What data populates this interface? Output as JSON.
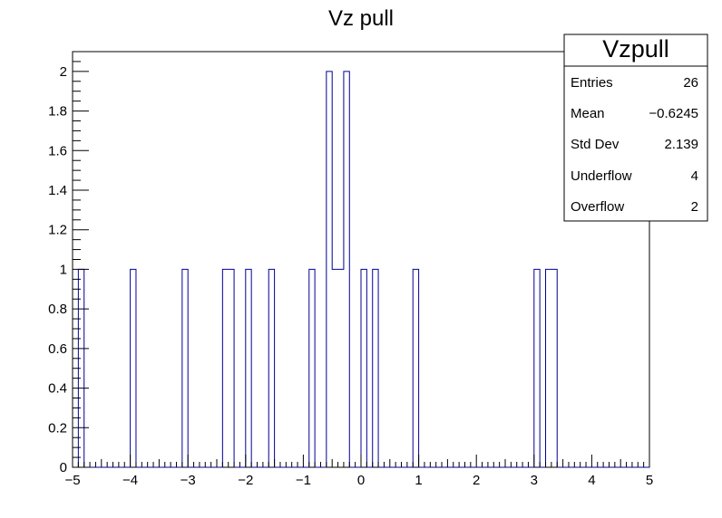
{
  "chart_data": {
    "type": "bar",
    "title": "Vz pull",
    "xlabel": "",
    "ylabel": "",
    "xlim": [
      -5,
      5
    ],
    "ylim": [
      0,
      2.1
    ],
    "bin_width": 0.1,
    "x_ticks": [
      "−5",
      "−4",
      "−3",
      "−2",
      "−1",
      "0",
      "1",
      "2",
      "3",
      "4",
      "5"
    ],
    "y_ticks": [
      "0",
      "0.2",
      "0.4",
      "0.6",
      "0.8",
      "1",
      "1.2",
      "1.4",
      "1.6",
      "1.8",
      "2"
    ],
    "bins": [
      {
        "x_low": -4.9,
        "count": 1
      },
      {
        "x_low": -4.0,
        "count": 1
      },
      {
        "x_low": -3.1,
        "count": 1
      },
      {
        "x_low": -2.4,
        "count": 1
      },
      {
        "x_low": -2.3,
        "count": 1
      },
      {
        "x_low": -2.0,
        "count": 1
      },
      {
        "x_low": -1.6,
        "count": 1
      },
      {
        "x_low": -0.9,
        "count": 1
      },
      {
        "x_low": -0.6,
        "count": 2
      },
      {
        "x_low": -0.5,
        "count": 1
      },
      {
        "x_low": -0.4,
        "count": 1
      },
      {
        "x_low": -0.3,
        "count": 2
      },
      {
        "x_low": 0.0,
        "count": 1
      },
      {
        "x_low": 0.2,
        "count": 1
      },
      {
        "x_low": 0.9,
        "count": 1
      },
      {
        "x_low": 3.0,
        "count": 1
      },
      {
        "x_low": 3.2,
        "count": 1
      },
      {
        "x_low": 3.3,
        "count": 1
      }
    ],
    "line_color": "#000099",
    "grid": false,
    "legend": "top-right"
  },
  "stats": {
    "title": "Vzpull",
    "rows": [
      {
        "label": "Entries",
        "value": "26"
      },
      {
        "label": "Mean",
        "value": "−0.6245"
      },
      {
        "label": "Std Dev",
        "value": "2.139"
      },
      {
        "label": "Underflow",
        "value": "4"
      },
      {
        "label": "Overflow",
        "value": "2"
      }
    ]
  }
}
